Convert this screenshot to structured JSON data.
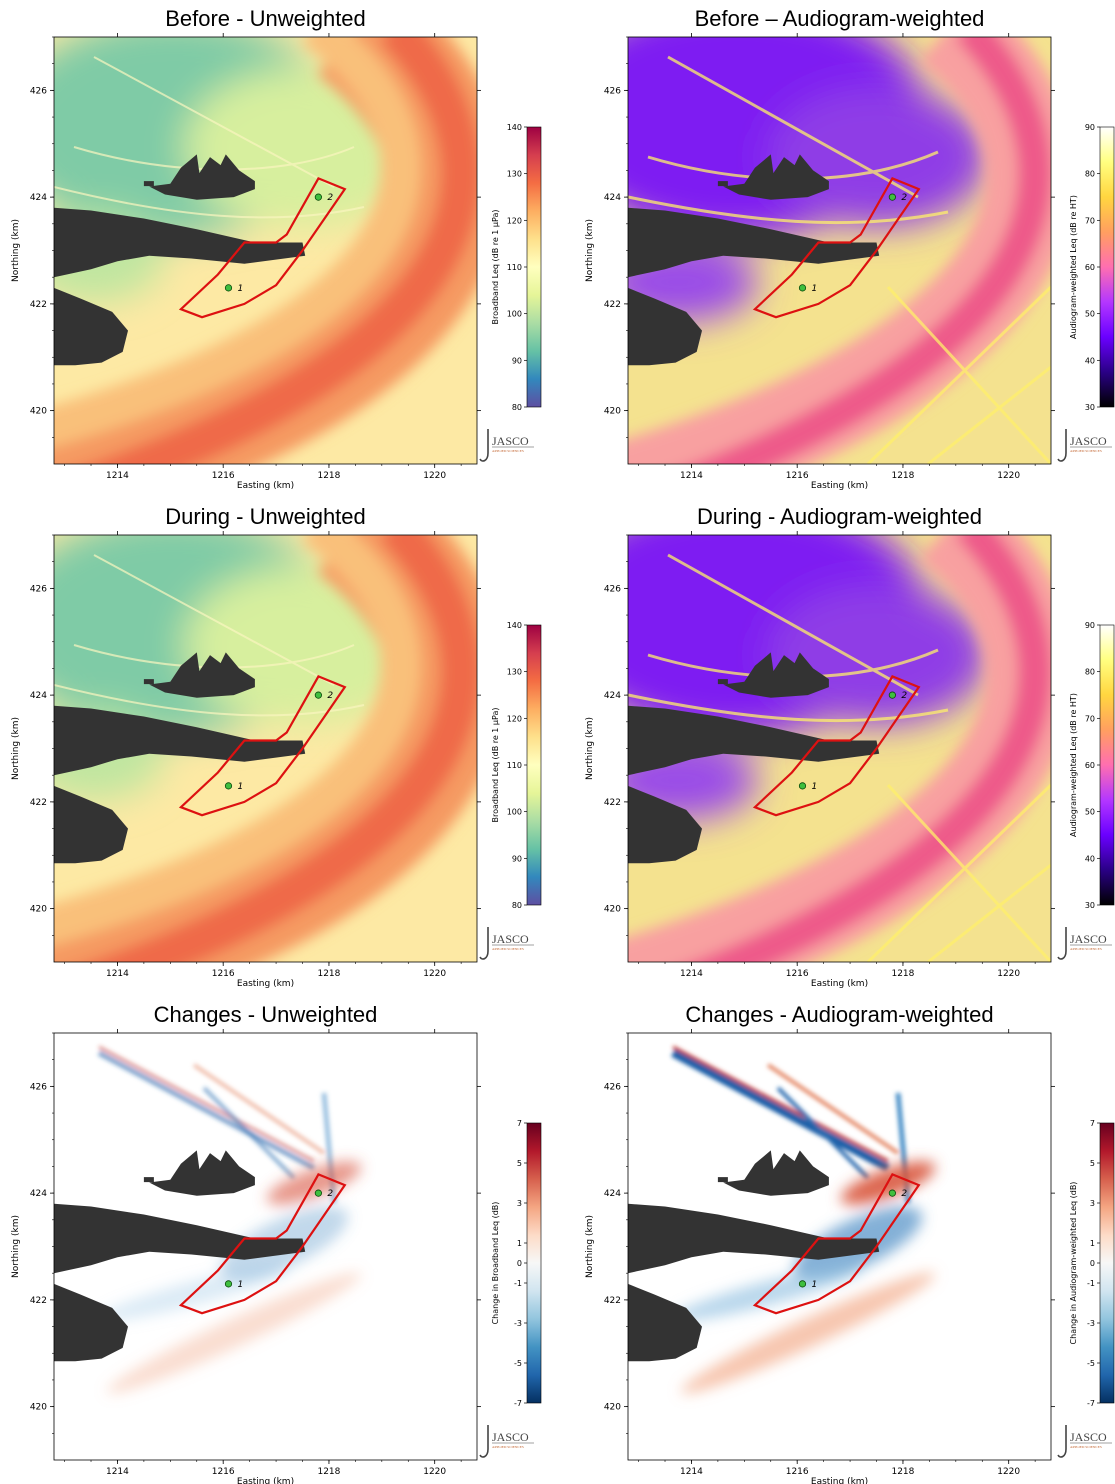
{
  "figure": {
    "logo": {
      "text": "JASCO",
      "subtext": "APPLIED SCIENCES"
    }
  },
  "chart_data": [
    {
      "type": "heatmap",
      "title": "Before - Unweighted",
      "xlabel": "Easting (km)",
      "ylabel": "Northing (km)",
      "xlim": [
        1212.8,
        1220.8
      ],
      "ylim": [
        419.0,
        427.0
      ],
      "xticks": [
        "1214",
        "1216",
        "1218",
        "1220"
      ],
      "yticks": [
        "420",
        "422",
        "424",
        "426"
      ],
      "colormap": "Spectral_r",
      "colorbar": {
        "label": "Broadband Leq (dB re 1 µPa)",
        "min": 80,
        "max": 140,
        "ticks": [
          "80",
          "90",
          "100",
          "110",
          "120",
          "130",
          "140"
        ]
      },
      "sites": [
        {
          "label": "1",
          "x": 1216.1,
          "y": 422.3
        },
        {
          "label": "2",
          "x": 1217.8,
          "y": 424.0
        }
      ]
    },
    {
      "type": "heatmap",
      "title": "Before – Audiogram-weighted",
      "xlabel": "Easting (km)",
      "ylabel": "Northing (km)",
      "xlim": [
        1212.8,
        1220.8
      ],
      "ylim": [
        419.0,
        427.0
      ],
      "xticks": [
        "1214",
        "1216",
        "1218",
        "1220"
      ],
      "yticks": [
        "420",
        "422",
        "424",
        "426"
      ],
      "colormap": "gnuplot2_r",
      "colorbar": {
        "label": "Audiogram-weighted Leq (dB re HT)",
        "min": 30,
        "max": 90,
        "ticks": [
          "30",
          "40",
          "50",
          "60",
          "70",
          "80",
          "90"
        ]
      },
      "sites": [
        {
          "label": "1",
          "x": 1216.1,
          "y": 422.3
        },
        {
          "label": "2",
          "x": 1217.8,
          "y": 424.0
        }
      ]
    },
    {
      "type": "heatmap",
      "title": "During - Unweighted",
      "xlabel": "Easting (km)",
      "ylabel": "Northing (km)",
      "xlim": [
        1212.8,
        1220.8
      ],
      "ylim": [
        419.0,
        427.0
      ],
      "xticks": [
        "1214",
        "1216",
        "1218",
        "1220"
      ],
      "yticks": [
        "420",
        "422",
        "424",
        "426"
      ],
      "colormap": "Spectral_r",
      "colorbar": {
        "label": "Broadband Leq (dB re 1 µPa)",
        "min": 80,
        "max": 140,
        "ticks": [
          "80",
          "90",
          "100",
          "110",
          "120",
          "130",
          "140"
        ]
      },
      "sites": [
        {
          "label": "1",
          "x": 1216.1,
          "y": 422.3
        },
        {
          "label": "2",
          "x": 1217.8,
          "y": 424.0
        }
      ]
    },
    {
      "type": "heatmap",
      "title": "During - Audiogram-weighted",
      "xlabel": "Easting (km)",
      "ylabel": "Northing (km)",
      "xlim": [
        1212.8,
        1220.8
      ],
      "ylim": [
        419.0,
        427.0
      ],
      "xticks": [
        "1214",
        "1216",
        "1218",
        "1220"
      ],
      "yticks": [
        "420",
        "422",
        "424",
        "426"
      ],
      "colormap": "gnuplot2_r",
      "colorbar": {
        "label": "Audiogram-weighted Leq (dB re HT)",
        "min": 30,
        "max": 90,
        "ticks": [
          "30",
          "40",
          "50",
          "60",
          "70",
          "80",
          "90"
        ]
      },
      "sites": [
        {
          "label": "1",
          "x": 1216.1,
          "y": 422.3
        },
        {
          "label": "2",
          "x": 1217.8,
          "y": 424.0
        }
      ]
    },
    {
      "type": "heatmap",
      "title": "Changes - Unweighted",
      "xlabel": "Easting (km)",
      "ylabel": "Northing (km)",
      "xlim": [
        1212.8,
        1220.8
      ],
      "ylim": [
        419.0,
        427.0
      ],
      "xticks": [
        "1214",
        "1216",
        "1218",
        "1220"
      ],
      "yticks": [
        "420",
        "422",
        "424",
        "426"
      ],
      "colormap": "RdBu_r",
      "colorbar": {
        "label": "Change in Broadband Leq (dB)",
        "min": -7,
        "max": 7,
        "ticks": [
          "-7",
          "-5",
          "-3",
          "-1",
          "0",
          "1",
          "3",
          "5",
          "7"
        ]
      },
      "sites": [
        {
          "label": "1",
          "x": 1216.1,
          "y": 422.3
        },
        {
          "label": "2",
          "x": 1217.8,
          "y": 424.0
        }
      ]
    },
    {
      "type": "heatmap",
      "title": "Changes - Audiogram-weighted",
      "xlabel": "Easting (km)",
      "ylabel": "Northing (km)",
      "xlim": [
        1212.8,
        1220.8
      ],
      "ylim": [
        419.0,
        427.0
      ],
      "xticks": [
        "1214",
        "1216",
        "1218",
        "1220"
      ],
      "yticks": [
        "420",
        "422",
        "424",
        "426"
      ],
      "colormap": "RdBu_r",
      "colorbar": {
        "label": "Change in Audiogram-weighted Leq (dB)",
        "min": -7,
        "max": 7,
        "ticks": [
          "-7",
          "-5",
          "-3",
          "-1",
          "0",
          "1",
          "3",
          "5",
          "7"
        ]
      },
      "sites": [
        {
          "label": "1",
          "x": 1216.1,
          "y": 422.3
        },
        {
          "label": "2",
          "x": 1217.8,
          "y": 424.0
        }
      ]
    }
  ]
}
